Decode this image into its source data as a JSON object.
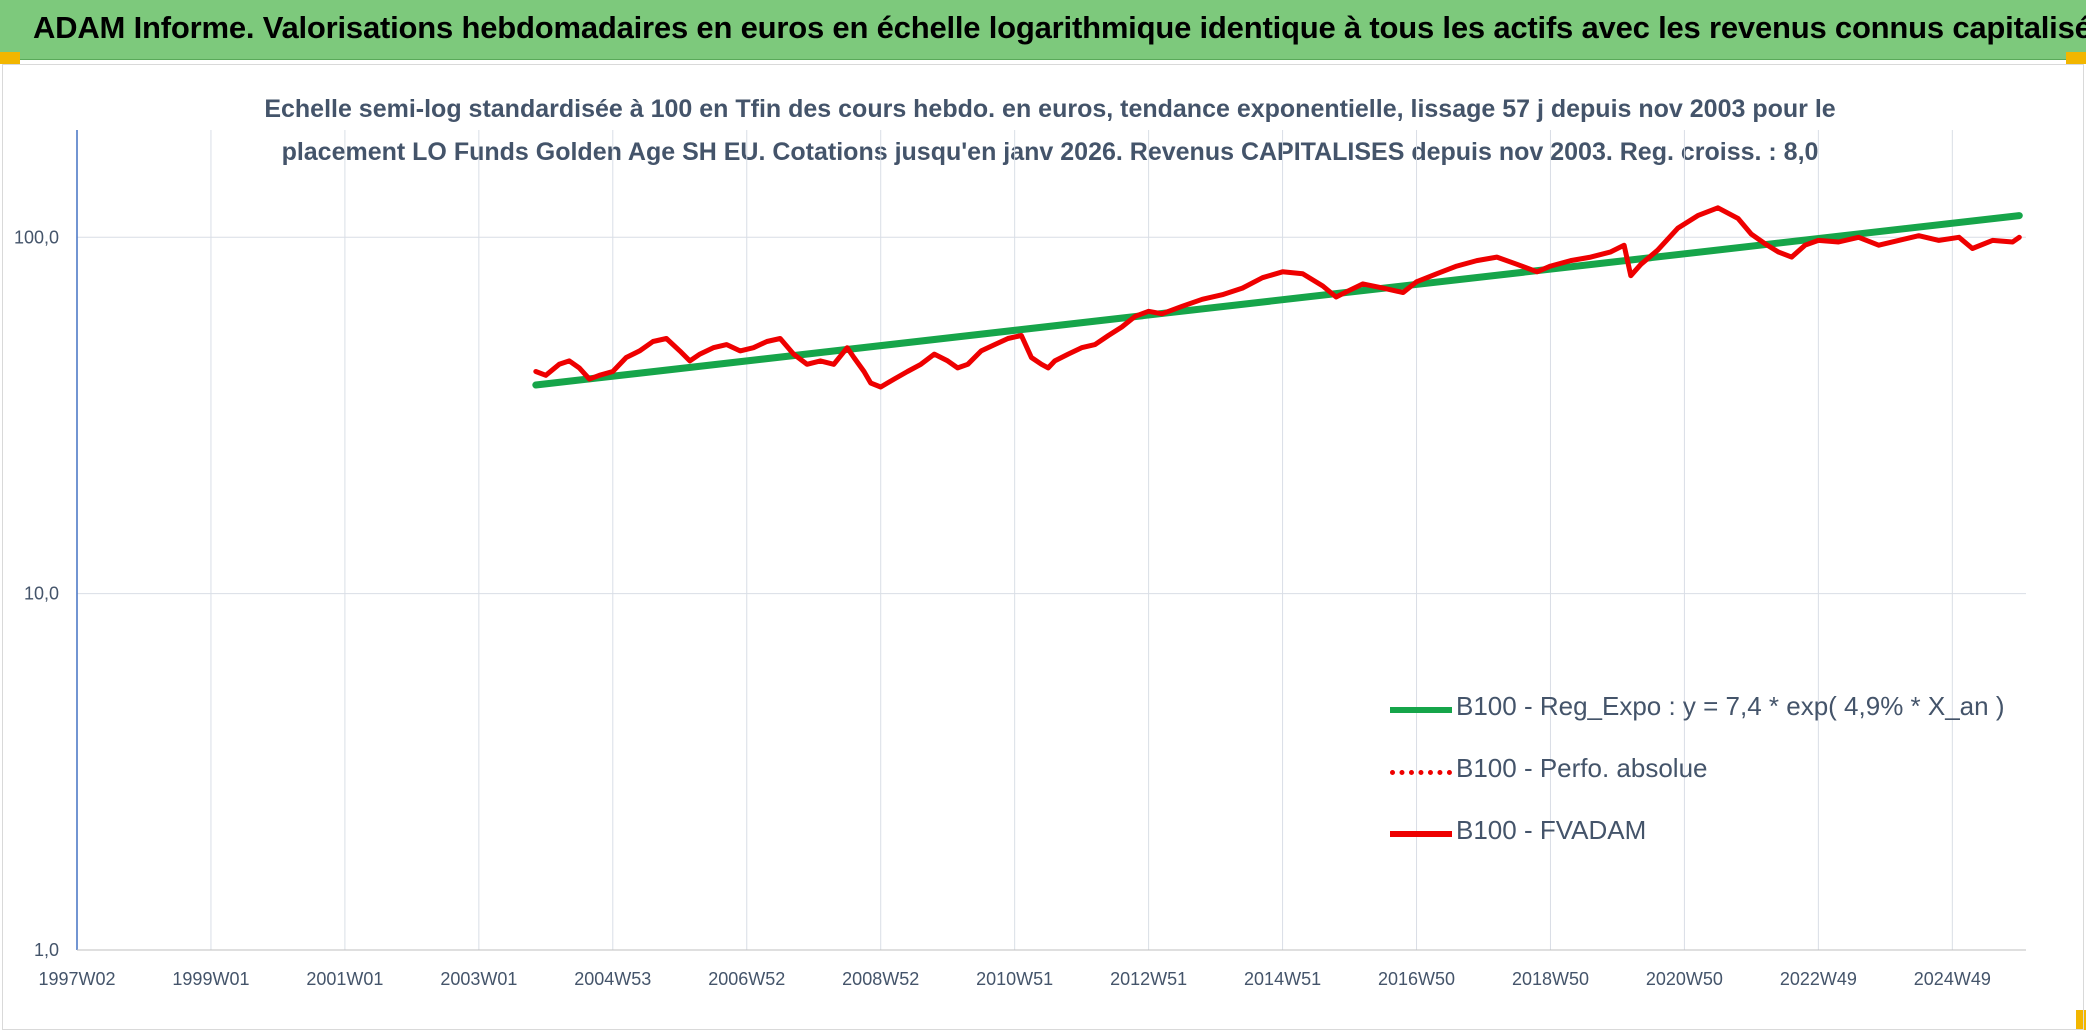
{
  "header": {
    "title": "ADAM Informe. Valorisations hebdomadaires en euros en échelle logarithmique identique à tous les actifs avec les revenus connus capitalisés"
  },
  "colors": {
    "header_bg": "#7dc97c",
    "corner_accent": "#f2b600",
    "trend": "#16a54a",
    "series": "#ee0000",
    "text": "#44546a",
    "grid": "#d9dee6"
  },
  "chart_data": {
    "type": "line",
    "title_line1": "Echelle semi-log standardisée à 100 en Tfin des cours hebdo. en euros, tendance exponentielle, lissage 57 j depuis nov 2003 pour le",
    "title_line2": "placement LO Funds Golden Age SH EU. Cotations jusqu'en janv 2026. Revenus CAPITALISES depuis nov 2003. Reg. croiss. : 8,0",
    "y_scale": "log",
    "ylim": [
      1,
      200
    ],
    "y_ticks": [
      "1,0",
      "10,0",
      "100,0"
    ],
    "y_tick_values": [
      1,
      10,
      100
    ],
    "xlim": [
      1997.0,
      2026.1
    ],
    "x_ticks": [
      "1997W02",
      "1999W01",
      "2001W01",
      "2003W01",
      "2004W53",
      "2006W52",
      "2008W52",
      "2010W51",
      "2012W51",
      "2014W51",
      "2016W50",
      "2018W50",
      "2020W50",
      "2022W49",
      "2024W49"
    ],
    "x_tick_values": [
      1997.0,
      1999.0,
      2001.0,
      2003.0,
      2005.0,
      2007.0,
      2009.0,
      2011.0,
      2013.0,
      2015.0,
      2017.0,
      2019.0,
      2021.0,
      2023.0,
      2025.0
    ],
    "grid": true,
    "legend_position": "bottom-right",
    "series": [
      {
        "name": "B100 - Reg_Expo : y = 7,4 * exp( 4,9% *  X_an )",
        "style": "solid-thick",
        "color": "#16a54a",
        "x": [
          2003.85,
          2026.0
        ],
        "y": [
          38.5,
          115.0
        ]
      },
      {
        "name": "B100 - Perfo. absolue",
        "style": "dotted",
        "color": "#ee0000",
        "x": [],
        "y": []
      },
      {
        "name": "B100 - FVADAM",
        "style": "solid",
        "color": "#ee0000",
        "x": [
          2003.85,
          2004.0,
          2004.2,
          2004.35,
          2004.5,
          2004.65,
          2004.8,
          2005.0,
          2005.2,
          2005.4,
          2005.6,
          2005.8,
          2006.0,
          2006.15,
          2006.3,
          2006.5,
          2006.7,
          2006.9,
          2007.1,
          2007.3,
          2007.5,
          2007.7,
          2007.9,
          2008.1,
          2008.3,
          2008.5,
          2008.6,
          2008.75,
          2008.85,
          2009.0,
          2009.2,
          2009.4,
          2009.6,
          2009.8,
          2010.0,
          2010.15,
          2010.3,
          2010.5,
          2010.7,
          2010.9,
          2011.1,
          2011.25,
          2011.4,
          2011.5,
          2011.6,
          2011.8,
          2012.0,
          2012.2,
          2012.4,
          2012.6,
          2012.8,
          2013.0,
          2013.2,
          2013.5,
          2013.8,
          2014.1,
          2014.4,
          2014.7,
          2015.0,
          2015.3,
          2015.6,
          2015.8,
          2016.0,
          2016.2,
          2016.5,
          2016.8,
          2017.0,
          2017.3,
          2017.6,
          2017.9,
          2018.2,
          2018.5,
          2018.8,
          2019.0,
          2019.3,
          2019.6,
          2019.9,
          2020.1,
          2020.2,
          2020.35,
          2020.6,
          2020.9,
          2021.2,
          2021.5,
          2021.8,
          2022.0,
          2022.2,
          2022.4,
          2022.6,
          2022.8,
          2023.0,
          2023.3,
          2023.6,
          2023.9,
          2024.2,
          2024.5,
          2024.8,
          2025.1,
          2025.3,
          2025.6,
          2025.9,
          2026.0
        ],
        "y": [
          42,
          41,
          44,
          45,
          43,
          40,
          41,
          42,
          46,
          48,
          51,
          52,
          48,
          45,
          47,
          49,
          50,
          48,
          49,
          51,
          52,
          47,
          44,
          45,
          44,
          49,
          46,
          42,
          39,
          38,
          40,
          42,
          44,
          47,
          45,
          43,
          44,
          48,
          50,
          52,
          53,
          46,
          44,
          43,
          45,
          47,
          49,
          50,
          53,
          56,
          60,
          62,
          61,
          64,
          67,
          69,
          72,
          77,
          80,
          79,
          73,
          68,
          71,
          74,
          72,
          70,
          75,
          79,
          83,
          86,
          88,
          84,
          80,
          83,
          86,
          88,
          91,
          95,
          78,
          84,
          92,
          106,
          115,
          121,
          113,
          102,
          96,
          91,
          88,
          95,
          98,
          97,
          100,
          95,
          98,
          101,
          98,
          100,
          93,
          98,
          97,
          100
        ]
      }
    ]
  }
}
